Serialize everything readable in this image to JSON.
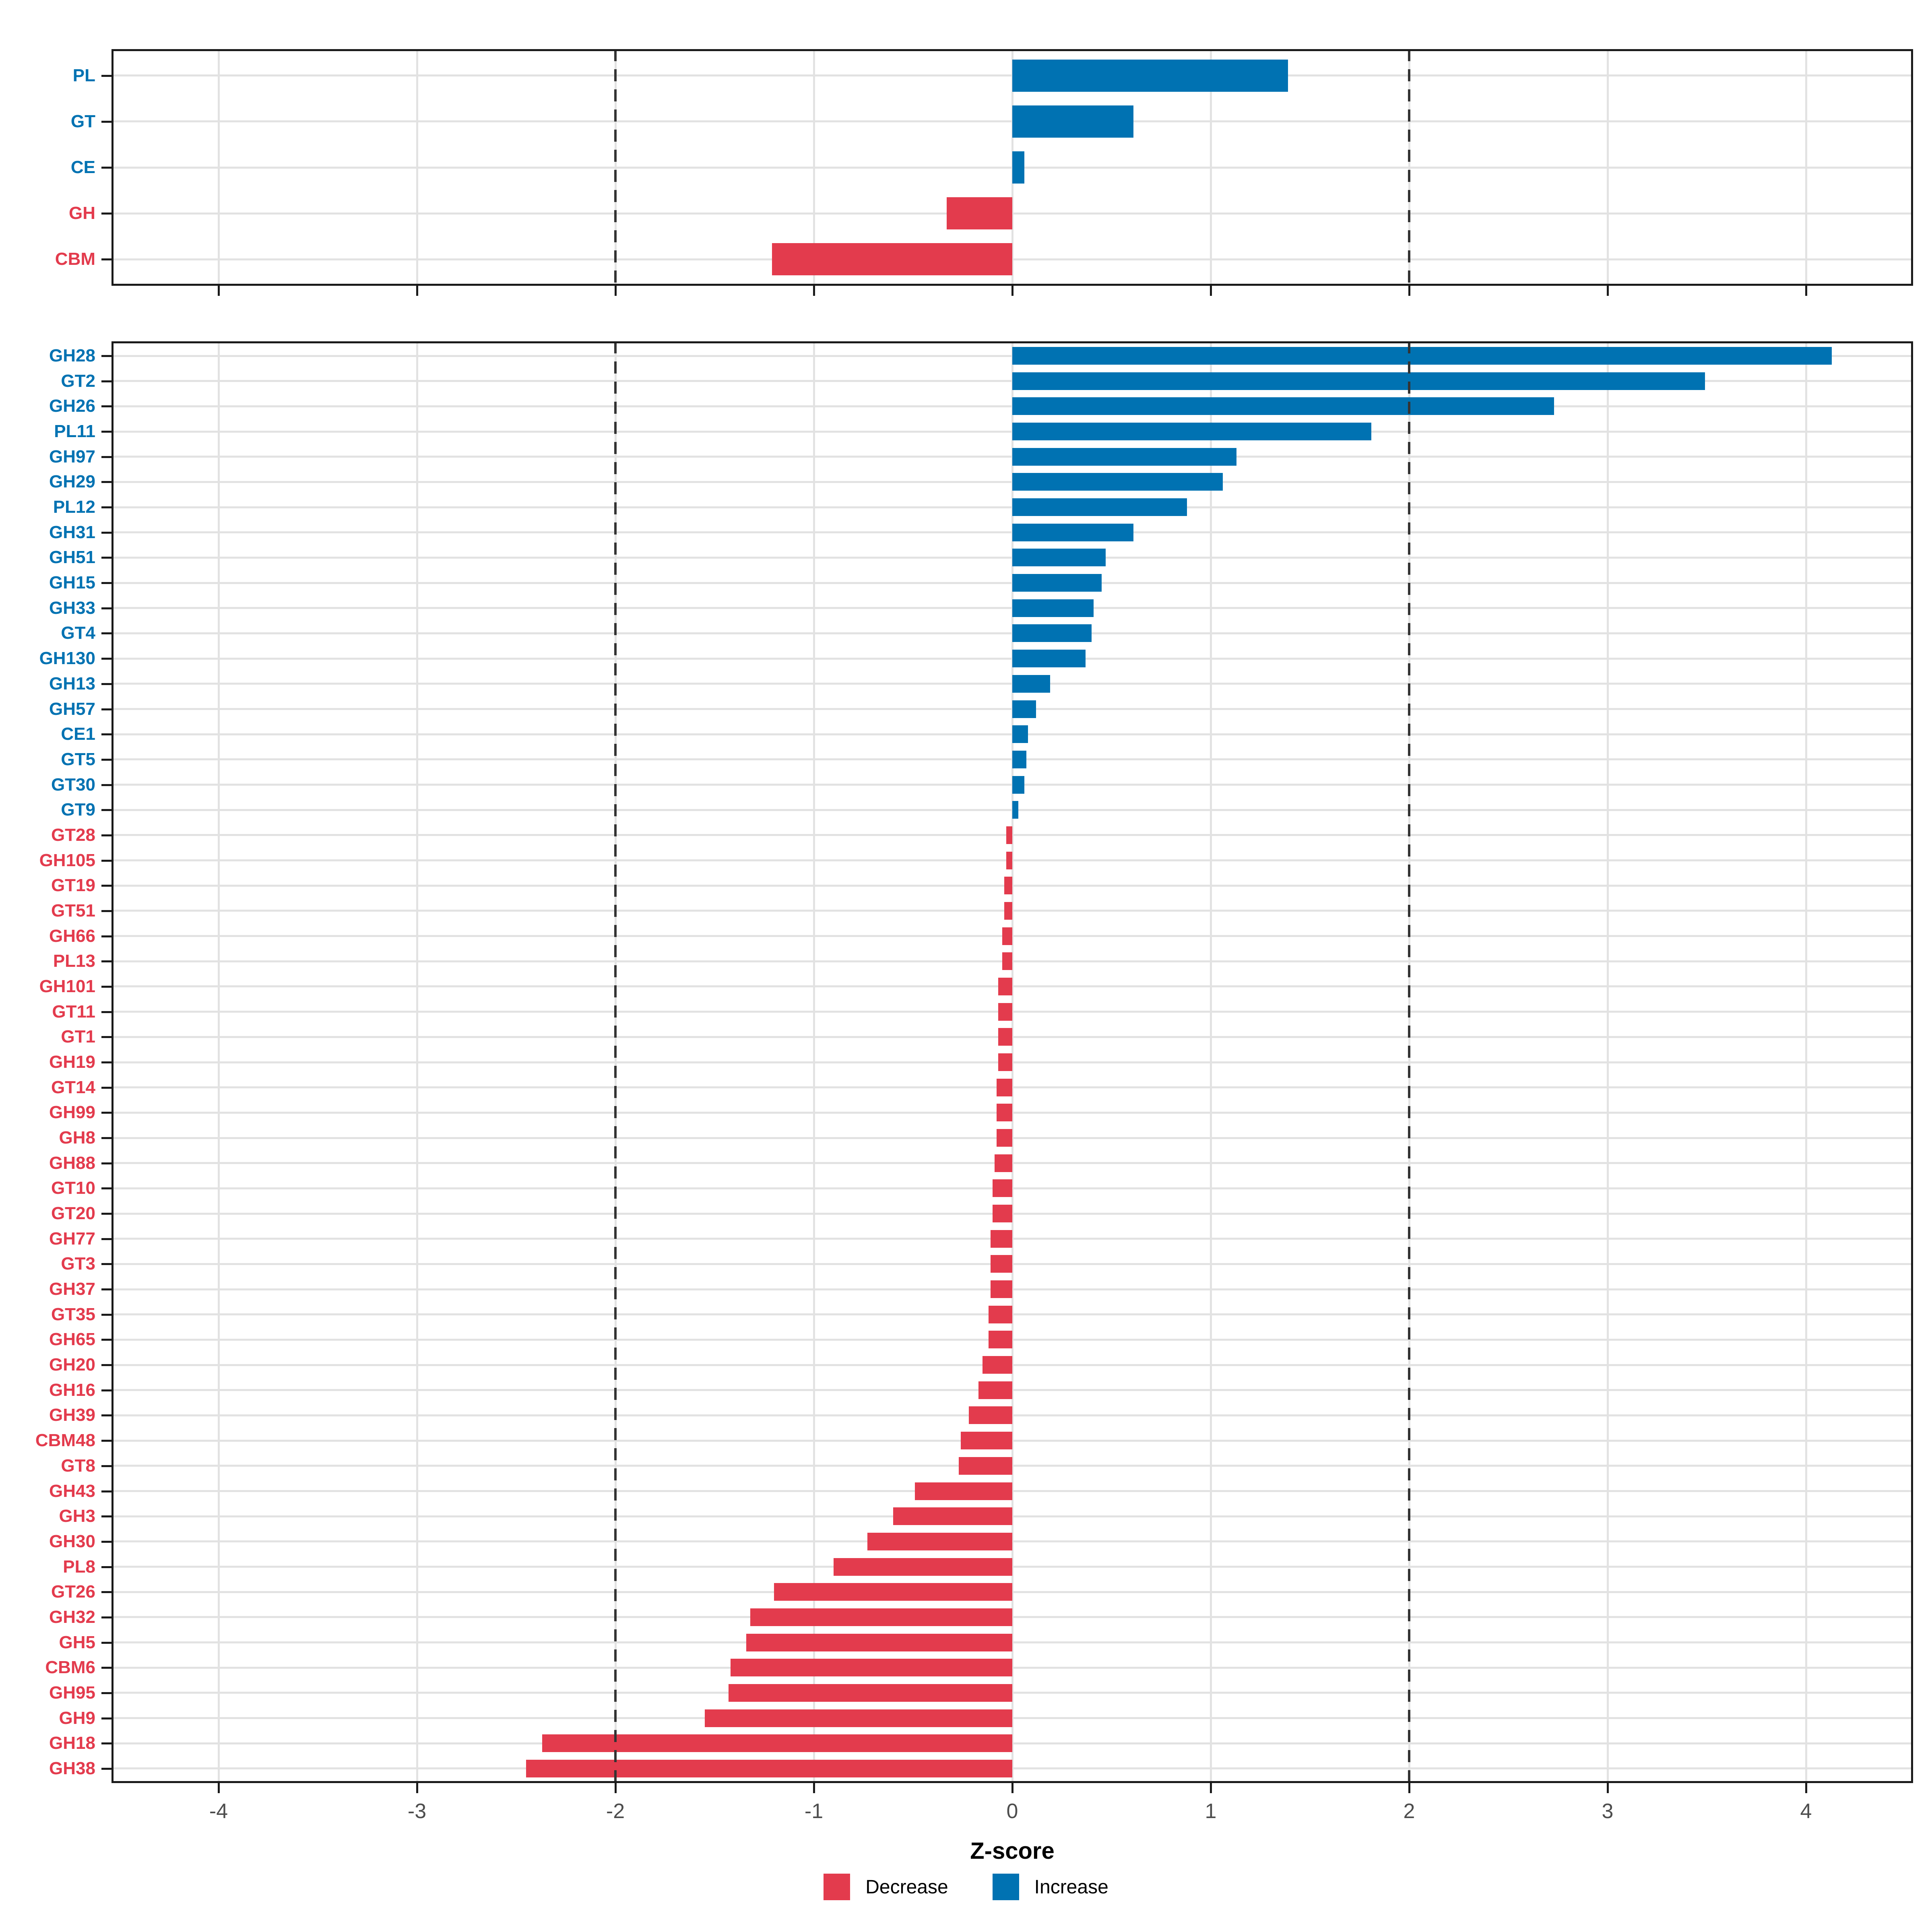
{
  "colors": {
    "increase": "#0072B2",
    "decrease": "#E33B4D",
    "grid": "#e2e2e2",
    "border": "#1a1a1a",
    "tick_label": "#4d4d4d",
    "dashed_line": "#333333"
  },
  "chart_data": {
    "type": "bar",
    "orientation": "horizontal",
    "title": "",
    "xlabel": "Z-score",
    "ylabel": "",
    "xlim": [
      -4.54,
      4.54
    ],
    "x_ticks": [
      -4,
      -3,
      -2,
      -1,
      0,
      1,
      2,
      3,
      4
    ],
    "dashed_lines_at": [
      -2,
      2
    ],
    "grid": true,
    "legend_position": "bottom",
    "legend": [
      {
        "label": "Decrease",
        "key": "decrease"
      },
      {
        "label": "Increase",
        "key": "increase"
      }
    ],
    "panels": [
      {
        "name": "enzyme-class-summary",
        "categories": [
          "PL",
          "GT",
          "CE",
          "GH",
          "CBM"
        ],
        "values": [
          1.39,
          0.61,
          0.06,
          -0.33,
          -1.21
        ]
      },
      {
        "name": "enzyme-families",
        "categories": [
          "GH28",
          "GT2",
          "GH26",
          "PL11",
          "GH97",
          "GH29",
          "PL12",
          "GH31",
          "GH51",
          "GH15",
          "GH33",
          "GT4",
          "GH130",
          "GH13",
          "GH57",
          "CE1",
          "GT5",
          "GT30",
          "GT9",
          "GT28",
          "GH105",
          "GT19",
          "GT51",
          "GH66",
          "PL13",
          "GH101",
          "GT11",
          "GT1",
          "GH19",
          "GT14",
          "GH99",
          "GH8",
          "GH88",
          "GT10",
          "GT20",
          "GH77",
          "GT3",
          "GH37",
          "GT35",
          "GH65",
          "GH20",
          "GH16",
          "GH39",
          "CBM48",
          "GT8",
          "GH43",
          "GH3",
          "GH30",
          "PL8",
          "GT26",
          "GH32",
          "GH5",
          "CBM6",
          "GH95",
          "GH9",
          "GH18",
          "GH38"
        ],
        "values": [
          4.13,
          3.49,
          2.73,
          1.81,
          1.13,
          1.06,
          0.88,
          0.61,
          0.47,
          0.45,
          0.41,
          0.4,
          0.37,
          0.19,
          0.12,
          0.08,
          0.07,
          0.06,
          0.03,
          -0.03,
          -0.03,
          -0.04,
          -0.04,
          -0.05,
          -0.05,
          -0.07,
          -0.07,
          -0.07,
          -0.07,
          -0.08,
          -0.08,
          -0.08,
          -0.09,
          -0.1,
          -0.1,
          -0.11,
          -0.11,
          -0.11,
          -0.12,
          -0.12,
          -0.15,
          -0.17,
          -0.22,
          -0.26,
          -0.27,
          -0.49,
          -0.6,
          -0.73,
          -0.9,
          -1.2,
          -1.32,
          -1.34,
          -1.42,
          -1.43,
          -1.55,
          -2.37,
          -2.45
        ]
      }
    ]
  }
}
